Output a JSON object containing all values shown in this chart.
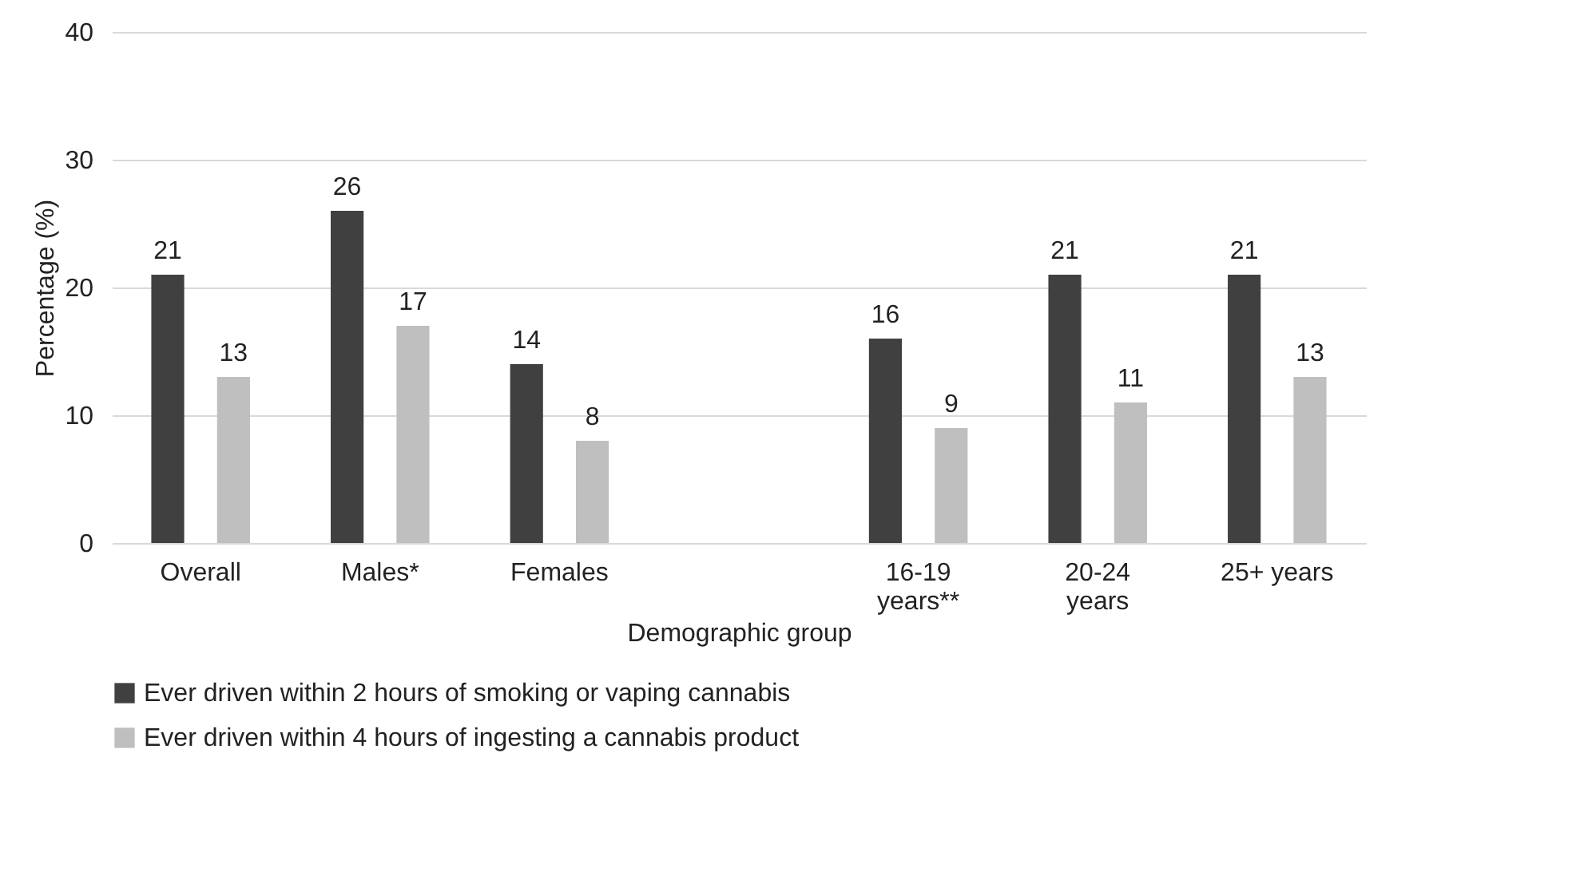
{
  "chart_data": {
    "type": "bar",
    "xlabel": "Demographic group",
    "ylabel": "Percentage (%)",
    "categories": [
      "Overall",
      "Males*",
      "Females",
      null,
      "16-19 years**",
      "20-24 years",
      "25+ years"
    ],
    "series": [
      {
        "name": "Ever driven within 2 hours of smoking or vaping cannabis",
        "color": "#404040",
        "values": [
          21,
          26,
          14,
          null,
          16,
          21,
          21
        ]
      },
      {
        "name": "Ever driven within 4 hours of ingesting a cannabis product",
        "color": "#bfbfbf",
        "values": [
          13,
          17,
          8,
          null,
          9,
          11,
          13
        ]
      }
    ],
    "ylim": [
      0,
      40
    ],
    "yticks": [
      0,
      10,
      20,
      30,
      40
    ],
    "grid": "y",
    "legend": "bottom",
    "data_labels": true
  }
}
